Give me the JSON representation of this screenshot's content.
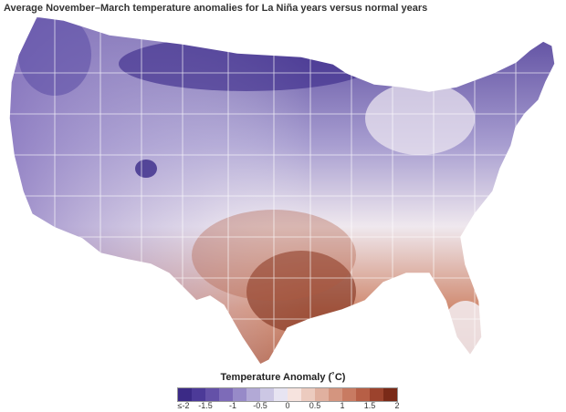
{
  "title": "Average November–March temperature anomalies for La Niña years versus normal years",
  "legend": {
    "title": "Temperature Anomaly (˚C)",
    "ticks": [
      "≤-2",
      "-1.5",
      "-1",
      "-0.5",
      "0",
      "0.5",
      "1",
      "1.5",
      "2"
    ],
    "colors": [
      "#3b2a86",
      "#4c3a98",
      "#6451a8",
      "#7d6bb8",
      "#978ac8",
      "#b2a9d6",
      "#ccc7e4",
      "#e7e4f2",
      "#f6e3de",
      "#eccbbf",
      "#e0b09f",
      "#d4957f",
      "#c87b62",
      "#b75f46",
      "#9c432d",
      "#7a2a18"
    ]
  },
  "map_colors": {
    "cold_strong": "#4a3894",
    "cold": "#7a68b6",
    "cool": "#b3aad6",
    "neutral": "#f1eef5",
    "warm": "#e4b8a6",
    "warmer": "#d08a70",
    "hot": "#b8624a",
    "hottest": "#8a3520",
    "state_border": "#ffffff"
  }
}
